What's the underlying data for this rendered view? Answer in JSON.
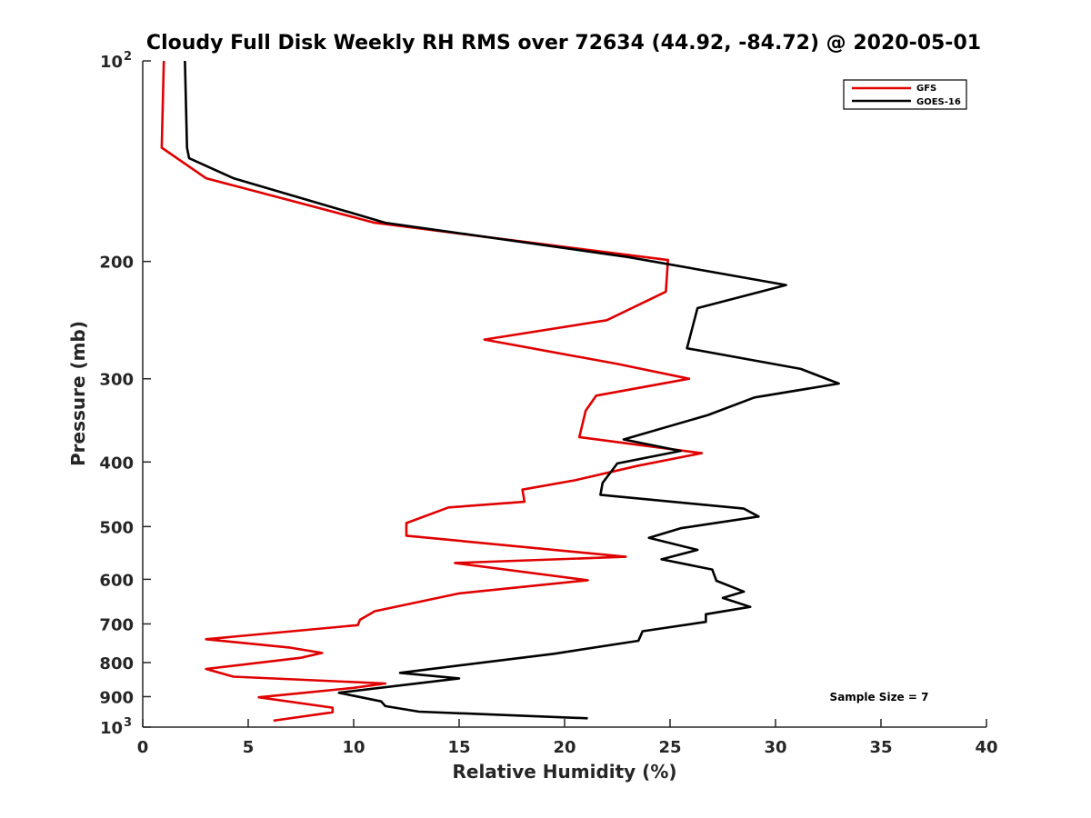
{
  "chart_data": {
    "type": "line",
    "title": "Cloudy Full Disk Weekly RH RMS over 72634 (44.92, -84.72) @ 2020-05-01",
    "xlabel": "Relative Humidity (%)",
    "ylabel": "Pressure (mb)",
    "xlim": [
      0,
      40
    ],
    "ylim": [
      100,
      1000
    ],
    "y_scale": "log",
    "y_reversed": true,
    "x_ticks": [
      "0",
      "5",
      "10",
      "15",
      "20",
      "25",
      "30",
      "35",
      "40"
    ],
    "y_ticks": [
      {
        "value": 100,
        "label": "10",
        "sup": "2"
      },
      {
        "value": 200,
        "label": "200",
        "sup": ""
      },
      {
        "value": 300,
        "label": "300",
        "sup": ""
      },
      {
        "value": 400,
        "label": "400",
        "sup": ""
      },
      {
        "value": 500,
        "label": "500",
        "sup": ""
      },
      {
        "value": 600,
        "label": "600",
        "sup": ""
      },
      {
        "value": 700,
        "label": "700",
        "sup": ""
      },
      {
        "value": 800,
        "label": "800",
        "sup": ""
      },
      {
        "value": 900,
        "label": "900",
        "sup": ""
      },
      {
        "value": 1000,
        "label": "10",
        "sup": "3"
      }
    ],
    "grid": false,
    "legend_position": "top-right",
    "annotation": "Sample Size = 7",
    "series": [
      {
        "name": "GFS",
        "color": "#e00000",
        "points": [
          [
            1.0,
            100
          ],
          [
            0.9,
            135
          ],
          [
            3.0,
            150
          ],
          [
            11.0,
            175
          ],
          [
            24.9,
            199
          ],
          [
            24.8,
            222
          ],
          [
            22.0,
            245
          ],
          [
            16.2,
            262
          ],
          [
            22.5,
            285
          ],
          [
            25.9,
            300
          ],
          [
            21.5,
            318
          ],
          [
            21.0,
            335
          ],
          [
            20.7,
            367
          ],
          [
            26.5,
            388
          ],
          [
            23.5,
            405
          ],
          [
            20.5,
            426
          ],
          [
            18.0,
            440
          ],
          [
            18.1,
            459
          ],
          [
            14.5,
            468
          ],
          [
            12.5,
            494
          ],
          [
            12.5,
            516
          ],
          [
            22.9,
            555
          ],
          [
            14.8,
            567
          ],
          [
            21.1,
            602
          ],
          [
            15.0,
            630
          ],
          [
            11.0,
            670
          ],
          [
            10.3,
            690
          ],
          [
            10.2,
            703
          ],
          [
            3.0,
            738
          ],
          [
            7.0,
            760
          ],
          [
            8.5,
            774
          ],
          [
            7.5,
            787
          ],
          [
            3.0,
            818
          ],
          [
            4.3,
            840
          ],
          [
            11.5,
            860
          ],
          [
            10.0,
            873
          ],
          [
            5.5,
            902
          ],
          [
            9.0,
            935
          ],
          [
            9.0,
            950
          ],
          [
            6.2,
            978
          ]
        ]
      },
      {
        "name": "GOES-16",
        "color": "#000000",
        "points": [
          [
            2.0,
            100
          ],
          [
            2.1,
            135
          ],
          [
            2.2,
            140
          ],
          [
            4.3,
            150
          ],
          [
            11.5,
            175
          ],
          [
            23.0,
            197
          ],
          [
            30.5,
            217
          ],
          [
            26.3,
            235
          ],
          [
            25.8,
            270
          ],
          [
            31.2,
            290
          ],
          [
            33.0,
            305
          ],
          [
            29.0,
            320
          ],
          [
            26.8,
            340
          ],
          [
            22.8,
            370
          ],
          [
            25.5,
            385
          ],
          [
            22.5,
            402
          ],
          [
            21.8,
            430
          ],
          [
            21.7,
            448
          ],
          [
            28.5,
            470
          ],
          [
            29.2,
            483
          ],
          [
            25.5,
            503
          ],
          [
            24.0,
            520
          ],
          [
            26.3,
            542
          ],
          [
            24.6,
            560
          ],
          [
            27.0,
            580
          ],
          [
            27.2,
            603
          ],
          [
            28.5,
            626
          ],
          [
            27.5,
            640
          ],
          [
            28.8,
            660
          ],
          [
            26.7,
            677
          ],
          [
            26.7,
            695
          ],
          [
            23.7,
            718
          ],
          [
            23.5,
            742
          ],
          [
            19.5,
            776
          ],
          [
            12.2,
            829
          ],
          [
            15.0,
            845
          ],
          [
            9.3,
            888
          ],
          [
            11.3,
            915
          ],
          [
            11.5,
            930
          ],
          [
            13.1,
            948
          ],
          [
            21.1,
            970
          ]
        ]
      }
    ]
  }
}
